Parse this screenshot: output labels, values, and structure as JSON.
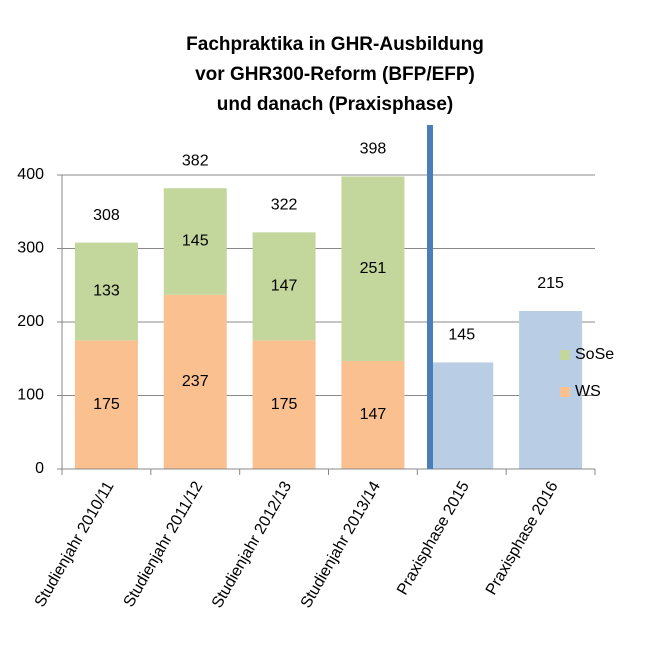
{
  "chart_data": {
    "type": "stacked_bar",
    "title": [
      "Fachpraktika in GHR-Ausbildung",
      "vor GHR300-Reform (BFP/EFP)",
      "und danach (Praxisphase)"
    ],
    "categories": [
      "Studienjahr 2010/11",
      "Studienjahr 2011/12",
      "Studienjahr 2012/13",
      "Studienjahr 2013/14",
      "Praxisphase 2015",
      "Praxisphase 2016"
    ],
    "series": [
      {
        "name": "WS",
        "color": "#fac090",
        "values": [
          175,
          237,
          175,
          147,
          null,
          null
        ]
      },
      {
        "name": "SoSe",
        "color": "#c3d69b",
        "values": [
          133,
          145,
          147,
          251,
          null,
          null
        ]
      }
    ],
    "totals": [
      308,
      382,
      322,
      398,
      null,
      null
    ],
    "values": [
      null,
      null,
      null,
      null,
      145,
      215
    ],
    "color": "#b9cde5",
    "ylim": [
      0,
      400
    ],
    "yticks": [
      0,
      100,
      200,
      300,
      400
    ],
    "grid": true,
    "legend": "right"
  }
}
